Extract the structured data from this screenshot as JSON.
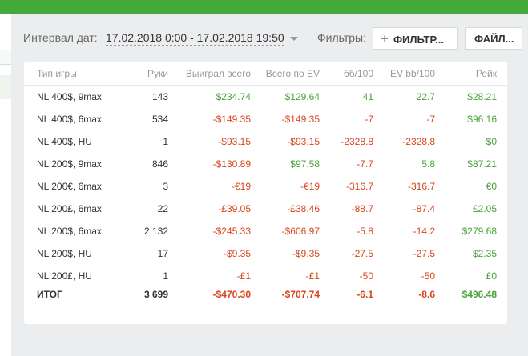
{
  "header": {
    "interval_label": "Интервал дат:",
    "interval_value": "17.02.2018 0:00 - 17.02.2018 19:50",
    "filters_label": "Фильтры:",
    "filter_button_label": "ФИЛЬТР...",
    "file_button_label": "ФАЙЛ..."
  },
  "colors": {
    "brand_green": "#46a93b",
    "positive": "#4aa33b",
    "negative": "#d9451c"
  },
  "table": {
    "columns": [
      "Тип игры",
      "Руки",
      "Выиграл всего",
      "Всего по EV",
      "бб/100",
      "EV bb/100",
      "Рейк"
    ],
    "rows": [
      {
        "game": "NL 400$, 9max",
        "hands": "143",
        "won": "$234.74",
        "ev": "$129.64",
        "bb100": "41",
        "evbb100": "22.7",
        "rake": "$28.21"
      },
      {
        "game": "NL 400$, 6max",
        "hands": "534",
        "won": "-$149.35",
        "ev": "-$149.35",
        "bb100": "-7",
        "evbb100": "-7",
        "rake": "$96.16"
      },
      {
        "game": "NL 400$, HU",
        "hands": "1",
        "won": "-$93.15",
        "ev": "-$93.15",
        "bb100": "-2328.8",
        "evbb100": "-2328.8",
        "rake": "$0"
      },
      {
        "game": "NL 200$, 9max",
        "hands": "846",
        "won": "-$130.89",
        "ev": "$97.58",
        "bb100": "-7.7",
        "evbb100": "5.8",
        "rake": "$87.21"
      },
      {
        "game": "NL 200€, 6max",
        "hands": "3",
        "won": "-€19",
        "ev": "-€19",
        "bb100": "-316.7",
        "evbb100": "-316.7",
        "rake": "€0"
      },
      {
        "game": "NL 200£, 6max",
        "hands": "22",
        "won": "-£39.05",
        "ev": "-£38.46",
        "bb100": "-88.7",
        "evbb100": "-87.4",
        "rake": "£2.05"
      },
      {
        "game": "NL 200$, 6max",
        "hands": "2 132",
        "won": "-$245.33",
        "ev": "-$606.97",
        "bb100": "-5.8",
        "evbb100": "-14.2",
        "rake": "$279.68"
      },
      {
        "game": "NL 200$, HU",
        "hands": "17",
        "won": "-$9.35",
        "ev": "-$9.35",
        "bb100": "-27.5",
        "evbb100": "-27.5",
        "rake": "$2.35"
      },
      {
        "game": "NL 200£, HU",
        "hands": "1",
        "won": "-£1",
        "ev": "-£1",
        "bb100": "-50",
        "evbb100": "-50",
        "rake": "£0"
      }
    ],
    "total": {
      "game": "ИТОГ",
      "hands": "3 699",
      "won": "-$470.30",
      "ev": "-$707.74",
      "bb100": "-6.1",
      "evbb100": "-8.6",
      "rake": "$496.48"
    }
  }
}
